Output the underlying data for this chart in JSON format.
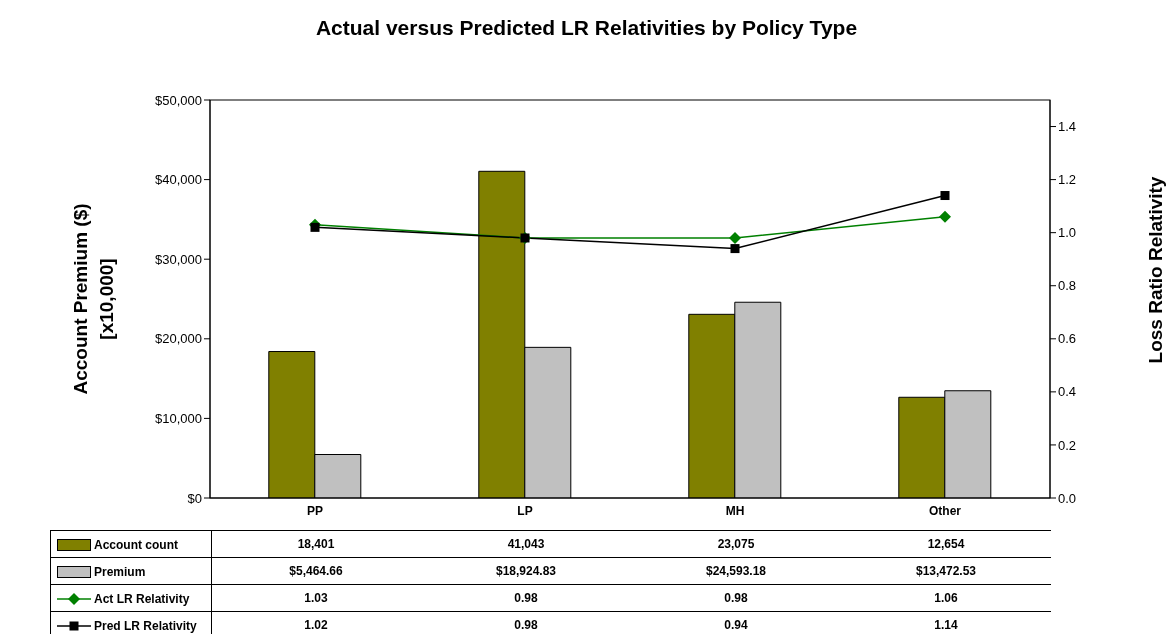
{
  "chart_data": {
    "type": "bar",
    "title": "Actual versus Predicted LR Relativities by Policy Type",
    "ylabel": "Account Premium ($)\n[x10,000]",
    "y2label": "Loss Ratio Relativity",
    "categories": [
      "PP",
      "LP",
      "MH",
      "Other"
    ],
    "series": [
      {
        "name": "Account count",
        "color": "#808000",
        "values": [
          18401,
          41043,
          23075,
          12654
        ],
        "value_labels": [
          "18,401",
          "41,043",
          "23,075",
          "12,654"
        ]
      },
      {
        "name": "Premium",
        "color": "#c0c0c0",
        "values": [
          5464.66,
          18924.83,
          24593.18,
          13472.53
        ],
        "value_labels": [
          "$5,464.66",
          "$18,924.83",
          "$24,593.18",
          "$13,472.53"
        ]
      },
      {
        "name": "Act LR Relativity",
        "type": "line",
        "axis": "y2",
        "marker": "diamond",
        "color": "#008000",
        "values": [
          1.03,
          0.98,
          0.98,
          1.06
        ],
        "value_labels": [
          "1.03",
          "0.98",
          "0.98",
          "1.06"
        ]
      },
      {
        "name": "Pred LR Relativity",
        "type": "line",
        "axis": "y2",
        "marker": "square",
        "color": "#000000",
        "values": [
          1.02,
          0.98,
          0.94,
          1.14
        ],
        "value_labels": [
          "1.02",
          "0.98",
          "0.94",
          "1.14"
        ]
      }
    ],
    "ylim": [
      0,
      50000
    ],
    "yticks": [
      {
        "value": 0,
        "label": "$0"
      },
      {
        "value": 10000,
        "label": "$10,000"
      },
      {
        "value": 20000,
        "label": "$20,000"
      },
      {
        "value": 30000,
        "label": "$30,000"
      },
      {
        "value": 40000,
        "label": "$40,000"
      },
      {
        "value": 50000,
        "label": "$50,000"
      }
    ],
    "y2lim": [
      0,
      1.5
    ],
    "y2ticks": [
      {
        "value": 0,
        "label": "0.0"
      },
      {
        "value": 0.2,
        "label": "0.2"
      },
      {
        "value": 0.4,
        "label": "0.4"
      },
      {
        "value": 0.6,
        "label": "0.6"
      },
      {
        "value": 0.8,
        "label": "0.8"
      },
      {
        "value": 1,
        "label": "1.0"
      },
      {
        "value": 1.2,
        "label": "1.2"
      },
      {
        "value": 1.4,
        "label": "1.4"
      }
    ],
    "grid": false,
    "legend": "bottom"
  }
}
